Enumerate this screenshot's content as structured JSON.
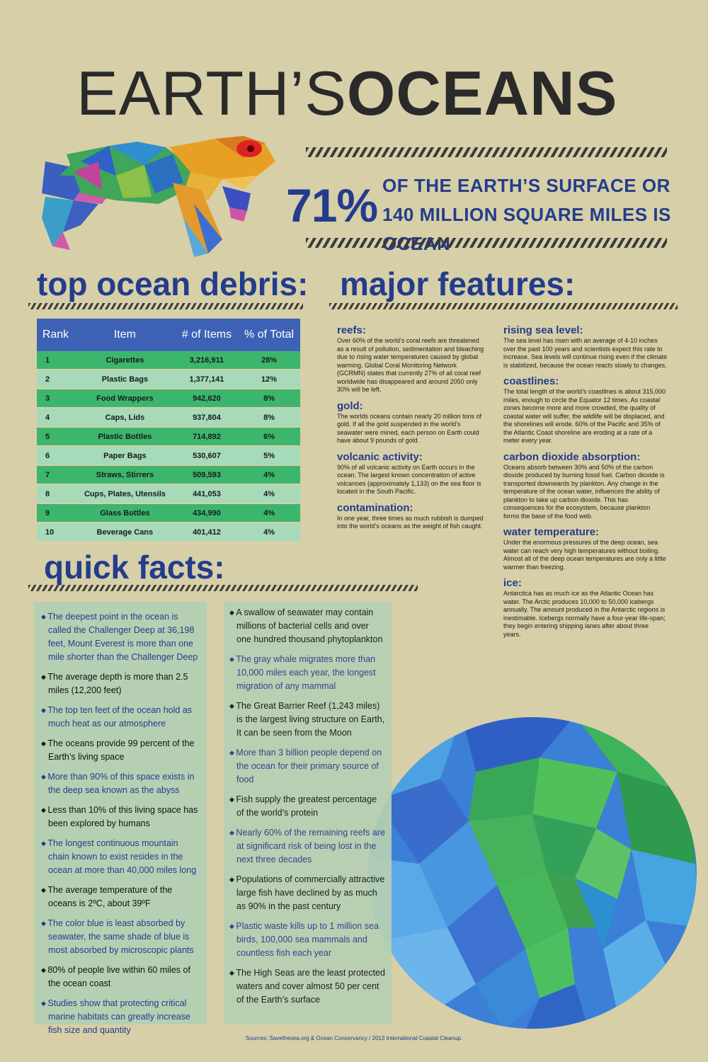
{
  "title": {
    "part1": "EARTH’S",
    "part2": "OCEANS"
  },
  "headline": {
    "percent": "71%",
    "text": "OF THE EARTH’S SURFACE OR 140 MILLION SQUARE MILES IS OCEAN"
  },
  "sections": {
    "debris": "top ocean debris:",
    "features": "major features:",
    "facts": "quick facts:"
  },
  "debris_table": {
    "headers": [
      "Rank",
      "Item",
      "# of Items",
      "% of Total"
    ],
    "rows": [
      {
        "rank": "1",
        "item": "Cigarettes",
        "count": "3,216,911",
        "pct": "28%"
      },
      {
        "rank": "2",
        "item": "Plastic Bags",
        "count": "1,377,141",
        "pct": "12%"
      },
      {
        "rank": "3",
        "item": "Food Wrappers",
        "count": "942,620",
        "pct": "8%"
      },
      {
        "rank": "4",
        "item": "Caps, Lids",
        "count": "937,804",
        "pct": "8%"
      },
      {
        "rank": "5",
        "item": "Plastic Bottles",
        "count": "714,892",
        "pct": "6%"
      },
      {
        "rank": "6",
        "item": "Paper Bags",
        "count": "530,607",
        "pct": "5%"
      },
      {
        "rank": "7",
        "item": "Straws, Stirrers",
        "count": "509,593",
        "pct": "4%"
      },
      {
        "rank": "8",
        "item": "Cups, Plates, Utensils",
        "count": "441,053",
        "pct": "4%"
      },
      {
        "rank": "9",
        "item": "Glass Bottles",
        "count": "434,990",
        "pct": "4%"
      },
      {
        "rank": "10",
        "item": "Beverage Cans",
        "count": "401,412",
        "pct": "4%"
      }
    ]
  },
  "features_left": [
    {
      "heading": "reefs:",
      "text": "Over 60% of the world’s coral reefs are threatened as a result of pollution, sedimentation and bleaching due to rising water temperatures caused by global warming. Global Coral Monitoring Network (GCRMN) states that currently 27% of all coral reef worldwide has disappeared and around 2050 only 30% will be left."
    },
    {
      "heading": "gold:",
      "text": "The worlds oceans contain nearly 20 million tons of gold. If all the gold suspended in the world’s seawater were mined, each person on Earth could have about 9 pounds of gold."
    },
    {
      "heading": "volcanic activity:",
      "text": "90% of all volcanic activity on Earth occurs in the ocean. The largest known concentration of active volcanoes (approximately 1,133) on the sea floor is located in the South Pacific."
    },
    {
      "heading": "contamination:",
      "text": "In one year, three times as much rubbish is dumped into the world’s oceans as the weight of fish caught."
    }
  ],
  "features_right": [
    {
      "heading": "rising sea level:",
      "text": "The sea level has risen with an average of 4-10 inches over the past 100 years and scientists expect this rate to increase. Sea levels will continue rising even if the climate is stabilized, because the ocean reacts slowly to changes."
    },
    {
      "heading": "coastlines:",
      "text": "The total length of the world’s coastlines is about 315,000 miles, enough to circle the Equator 12 times. As coastal zones become more and more crowded, the quality of coastal water will suffer, the wildlife will be displaced, and the shorelines will erode. 60% of the Pacific and 35% of the Atlantic Coast shoreline are eroding at a rate of a meter every year."
    },
    {
      "heading": "carbon dioxide absorption:",
      "text": "Oceans absorb between 30% and 50% of the carbon dioxide produced by burning fossil fuel. Carbon dioxide is transported downwards by plankton. Any change in the temperature of the ocean water, influences the ability of plankton to take up carbon dioxide. This has consequences for the ecosystem, because plankton forms the base of the food web."
    },
    {
      "heading": "water temperature:",
      "text": "Under the enormous pressures of the deep ocean, sea water can reach very high temperatures without boiling. Almost all of the deep ocean temperatures are only a little warmer than freezing."
    },
    {
      "heading": "ice:",
      "text": "Antarctica has as much ice as the Atlantic Ocean has water. The Arctic produces 10,000 to 50,000 icebergs annually. The amount produced in the Antarctic regions is inestimable. Icebergs normally have a four-year life-span; they begin entering shipping lanes after about three years."
    }
  ],
  "facts_left": [
    {
      "text": "The deepest point in the ocean is called the Challenger Deep at 36,198 feet, Mount Everest is more than one mile shorter than the Challenger Deep",
      "color": "blue"
    },
    {
      "text": "The average depth is more than 2.5 miles (12,200 feet)",
      "color": "black"
    },
    {
      "text": "The top ten feet of the ocean hold as much heat as our atmosphere",
      "color": "blue"
    },
    {
      "text": "The oceans provide 99 percent of the Earth’s living space",
      "color": "black"
    },
    {
      "text": "More than 90% of this space exists in the deep sea known as the abyss",
      "color": "blue"
    },
    {
      "text": "Less than 10% of this living space has been explored by humans",
      "color": "black"
    },
    {
      "text": "The longest continuous mountain chain known to exist resides in the ocean at more than 40,000 miles long",
      "color": "blue"
    },
    {
      "text": "The average temperature of the oceans is 2ºC, about 39ºF",
      "color": "black"
    },
    {
      "text": "The color blue is least absorbed by seawater, the same shade of blue is most absorbed by microscopic plants",
      "color": "blue"
    },
    {
      "text": "80% of people live within 60 miles of the ocean coast",
      "color": "black"
    },
    {
      "text": "Studies show that protecting critical marine habitats can greatly increase fish size and quantity",
      "color": "blue"
    }
  ],
  "facts_right": [
    {
      "text": "A swallow of seawater may contain millions of bacterial cells and over one hundred thousand phytoplankton",
      "color": "black"
    },
    {
      "text": "The gray whale migrates more than 10,000 miles each year, the longest migration of any mammal",
      "color": "blue"
    },
    {
      "text": "The Great Barrier Reef (1,243 miles) is the largest living structure on Earth, It can be seen from the Moon",
      "color": "black"
    },
    {
      "text": "More than 3 billion people depend on the ocean for their primary source of food",
      "color": "blue"
    },
    {
      "text": "Fish supply the greatest percentage of the world’s protein",
      "color": "black"
    },
    {
      "text": "Nearly 60% of the remaining reefs are at significant risk of being lost in the next three decades",
      "color": "blue"
    },
    {
      "text": "Populations of commercially attractive large fish have declined by as much as 90% in the past century",
      "color": "black"
    },
    {
      "text": "Plastic waste kills up to 1 million sea birds, 100,000 sea mammals and countless fish each year",
      "color": "blue"
    },
    {
      "text": "The High Seas are the least protected waters and cover almost 50 per cent of the Earth’s surface",
      "color": "black"
    }
  ],
  "sources": "Sources: Savethesea.org & Ocean Conservancy / 2013 International Coastal Cleanup.",
  "colors": {
    "background": "#d7cfa7",
    "navy": "#233c8c",
    "table_header": "#3d62b5",
    "green_row": "#3cb66d",
    "light_row": "#a6dab9",
    "fact_box": "#b6cfb3"
  },
  "images": {
    "turtle": "polygonal-sea-turtle",
    "globe": "polygonal-earth-globe"
  }
}
